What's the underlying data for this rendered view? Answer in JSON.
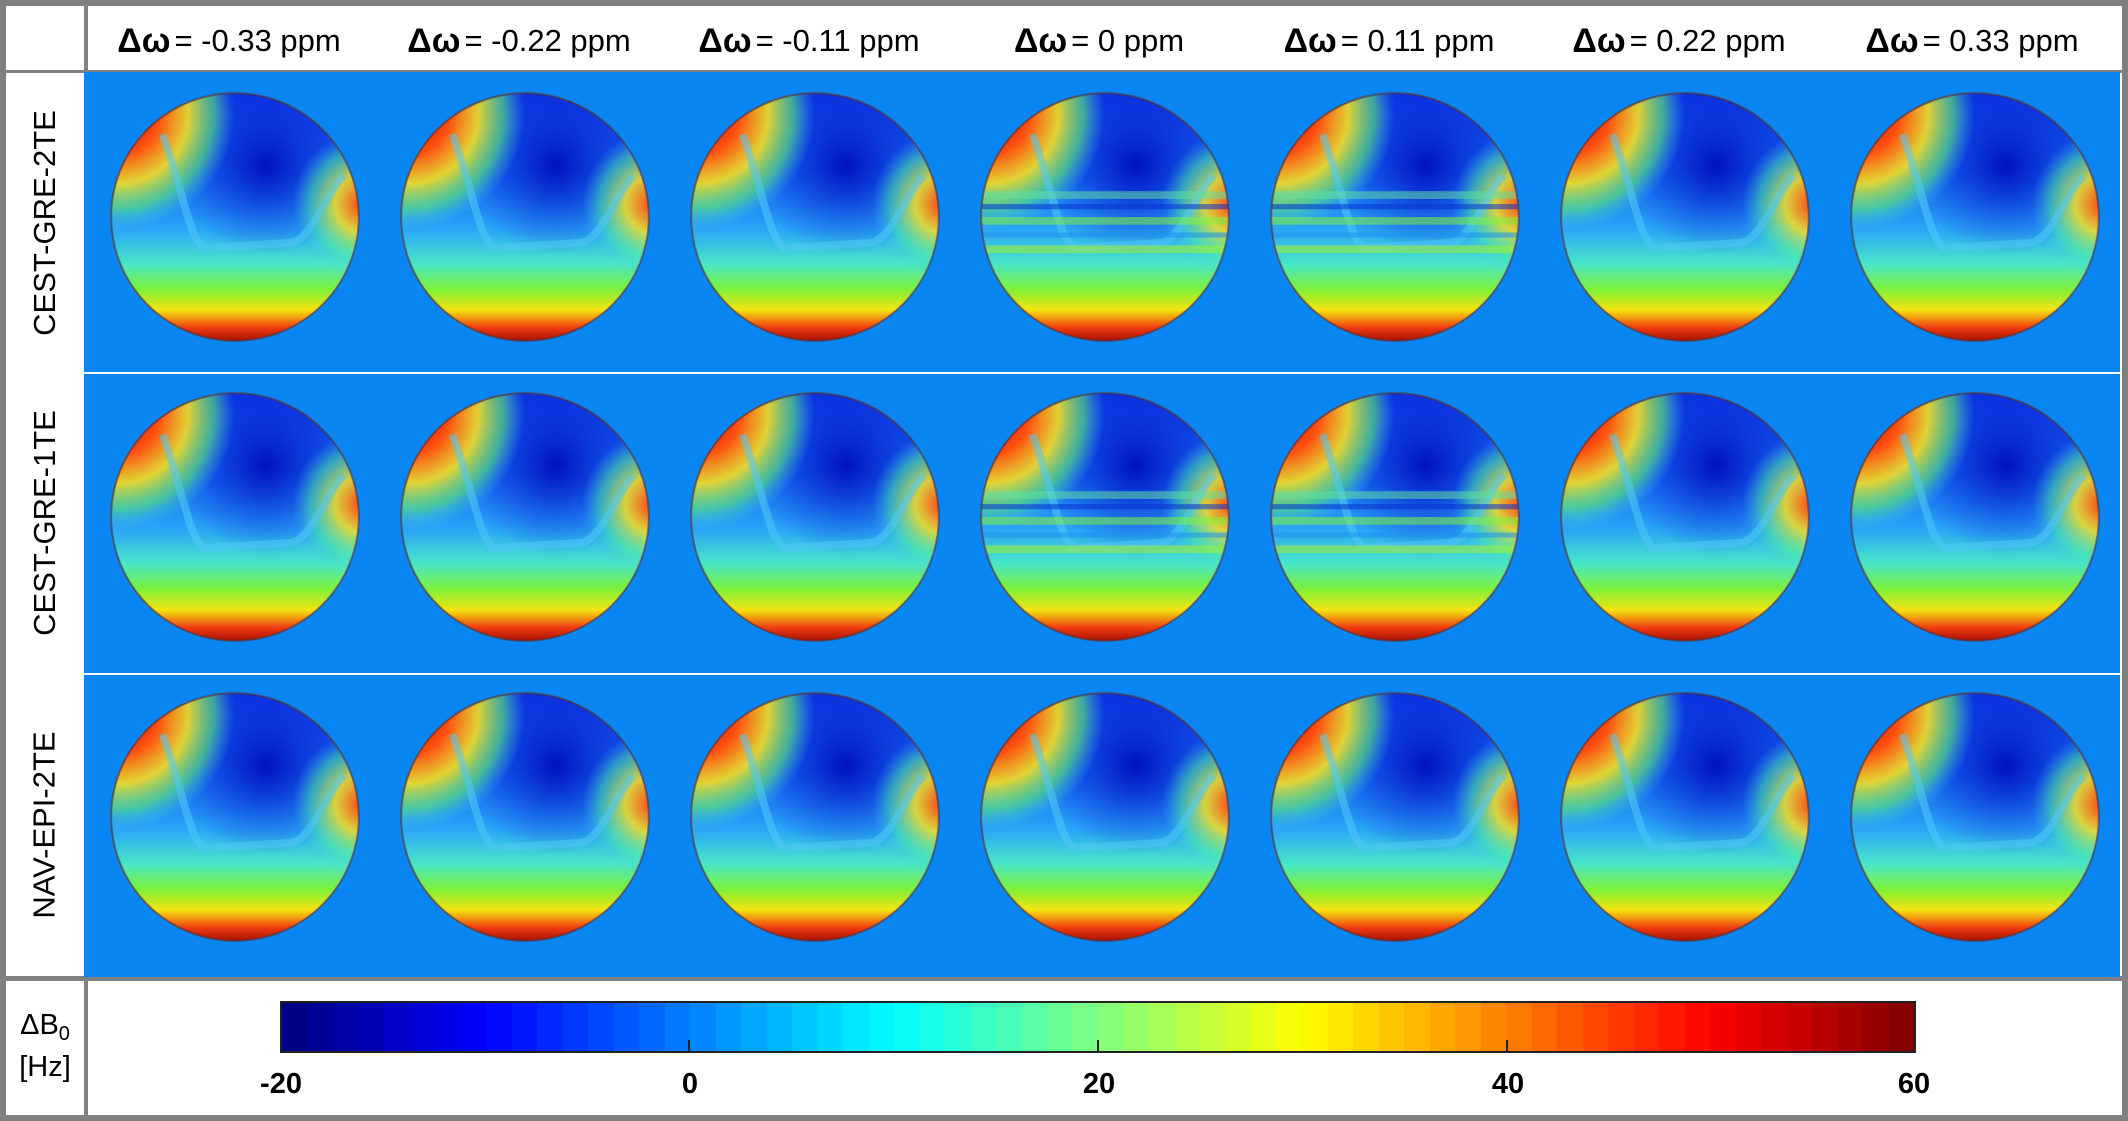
{
  "columns": [
    {
      "symbol": "Δω",
      "text": " = -0.33 ppm"
    },
    {
      "symbol": "Δω",
      "text": " = -0.22 ppm"
    },
    {
      "symbol": "Δω",
      "text": " = -0.11 ppm"
    },
    {
      "symbol": "Δω",
      "text": " = 0 ppm"
    },
    {
      "symbol": "Δω",
      "text": " = 0.11 ppm"
    },
    {
      "symbol": "Δω",
      "text": " = 0.22 ppm"
    },
    {
      "symbol": "Δω",
      "text": " = 0.33 ppm"
    }
  ],
  "rows": [
    {
      "label": "CEST-GRE-2TE"
    },
    {
      "label": "CEST-GRE-1TE"
    },
    {
      "label": "NAV-EPI-2TE"
    }
  ],
  "colorbar": {
    "label_main": "ΔB",
    "label_sub": "0",
    "label_unit": "[Hz]",
    "ticks": [
      "-20",
      "0",
      "20",
      "40",
      "60"
    ],
    "min": -20,
    "max": 60,
    "colormap": "jet",
    "background_color": "#0a86f2"
  }
}
